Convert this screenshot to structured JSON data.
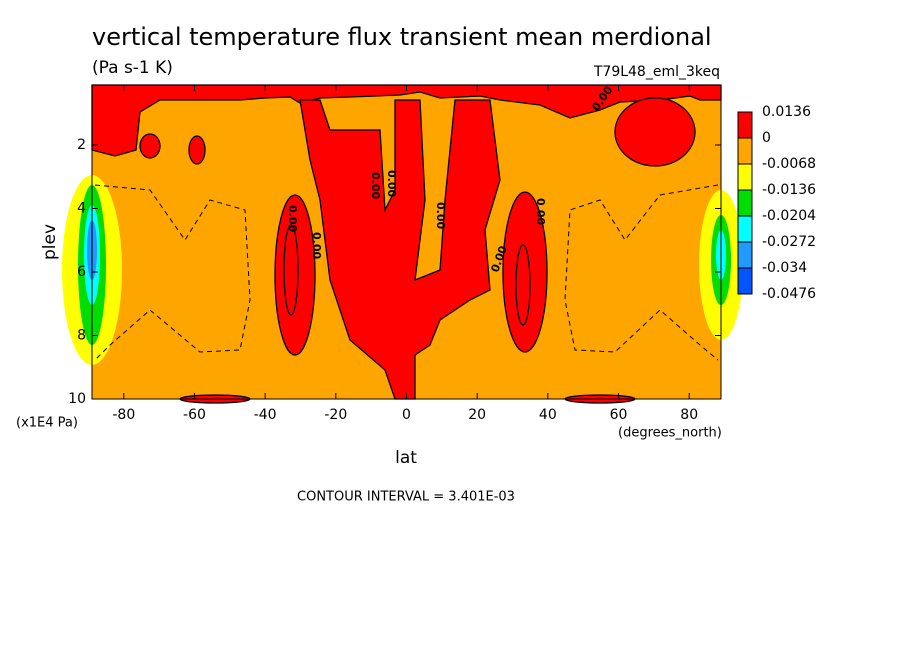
{
  "chart_data": {
    "type": "contour",
    "title": "vertical temperature flux transient mean merdional",
    "units": "(Pa s-1 K)",
    "dataset": "T79L48_eml_3keq",
    "x_label": "lat",
    "x_units": "(degrees_north)",
    "y_label": "plev",
    "y_units": "(x1E4 Pa)",
    "note": "CONTOUR INTERVAL = 3.401E-03",
    "contour_label": "0.00",
    "xlim": [
      -89,
      89
    ],
    "ylim": [
      10,
      0.11
    ],
    "xticks": [
      -80,
      -60,
      -40,
      -20,
      0,
      20,
      40,
      60,
      80
    ],
    "yticks": [
      2,
      4,
      6,
      8,
      10
    ],
    "levels": [
      0.0136,
      0,
      -0.0068,
      -0.0136,
      -0.0204,
      -0.0272,
      -0.034,
      -0.0476
    ],
    "colors": [
      "#ff0000",
      "#ffa500",
      "#ffff00",
      "#00dd00",
      "#00ffff",
      "#2299ff",
      "#0055ff"
    ]
  }
}
